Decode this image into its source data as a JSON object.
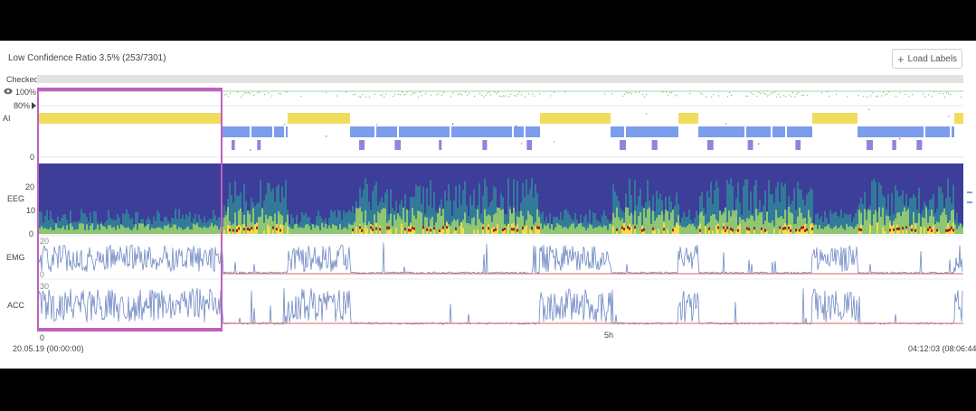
{
  "header": {
    "ratio_text": "Low Confidence Ratio 3.5% (253/7301)",
    "load_button_label": "Load Labels"
  },
  "tracks": {
    "checked_label": "Checked",
    "ai_label": "AI",
    "ai_pct_100": "100%",
    "ai_pct_80": "80%",
    "ai_zero": "0",
    "eeg_label": "EEG",
    "eeg_ticks": [
      "20",
      "10",
      "0"
    ],
    "emg_label": "EMG",
    "emg_top": "20",
    "emg_bottom": "0",
    "acc_label": "ACC",
    "acc_top": "30"
  },
  "time_axis": {
    "start_tick": "0",
    "mid_tick": "5h",
    "start_time": "20.05.19 (00:00:00)",
    "end_time": "04:12:03 (08:06:44)"
  },
  "colors": {
    "wake": "#f2dc5d",
    "nrem": "#7c9cec",
    "rem": "#8e86dc",
    "selection": "#c060c0",
    "signal": "#6f89c4",
    "threshold": "#e06060",
    "eeg_bg": "#3d3d9a"
  },
  "icons": {
    "eye": "eye-icon",
    "marker": "triangle-marker-icon",
    "plus": "plus-icon"
  }
}
